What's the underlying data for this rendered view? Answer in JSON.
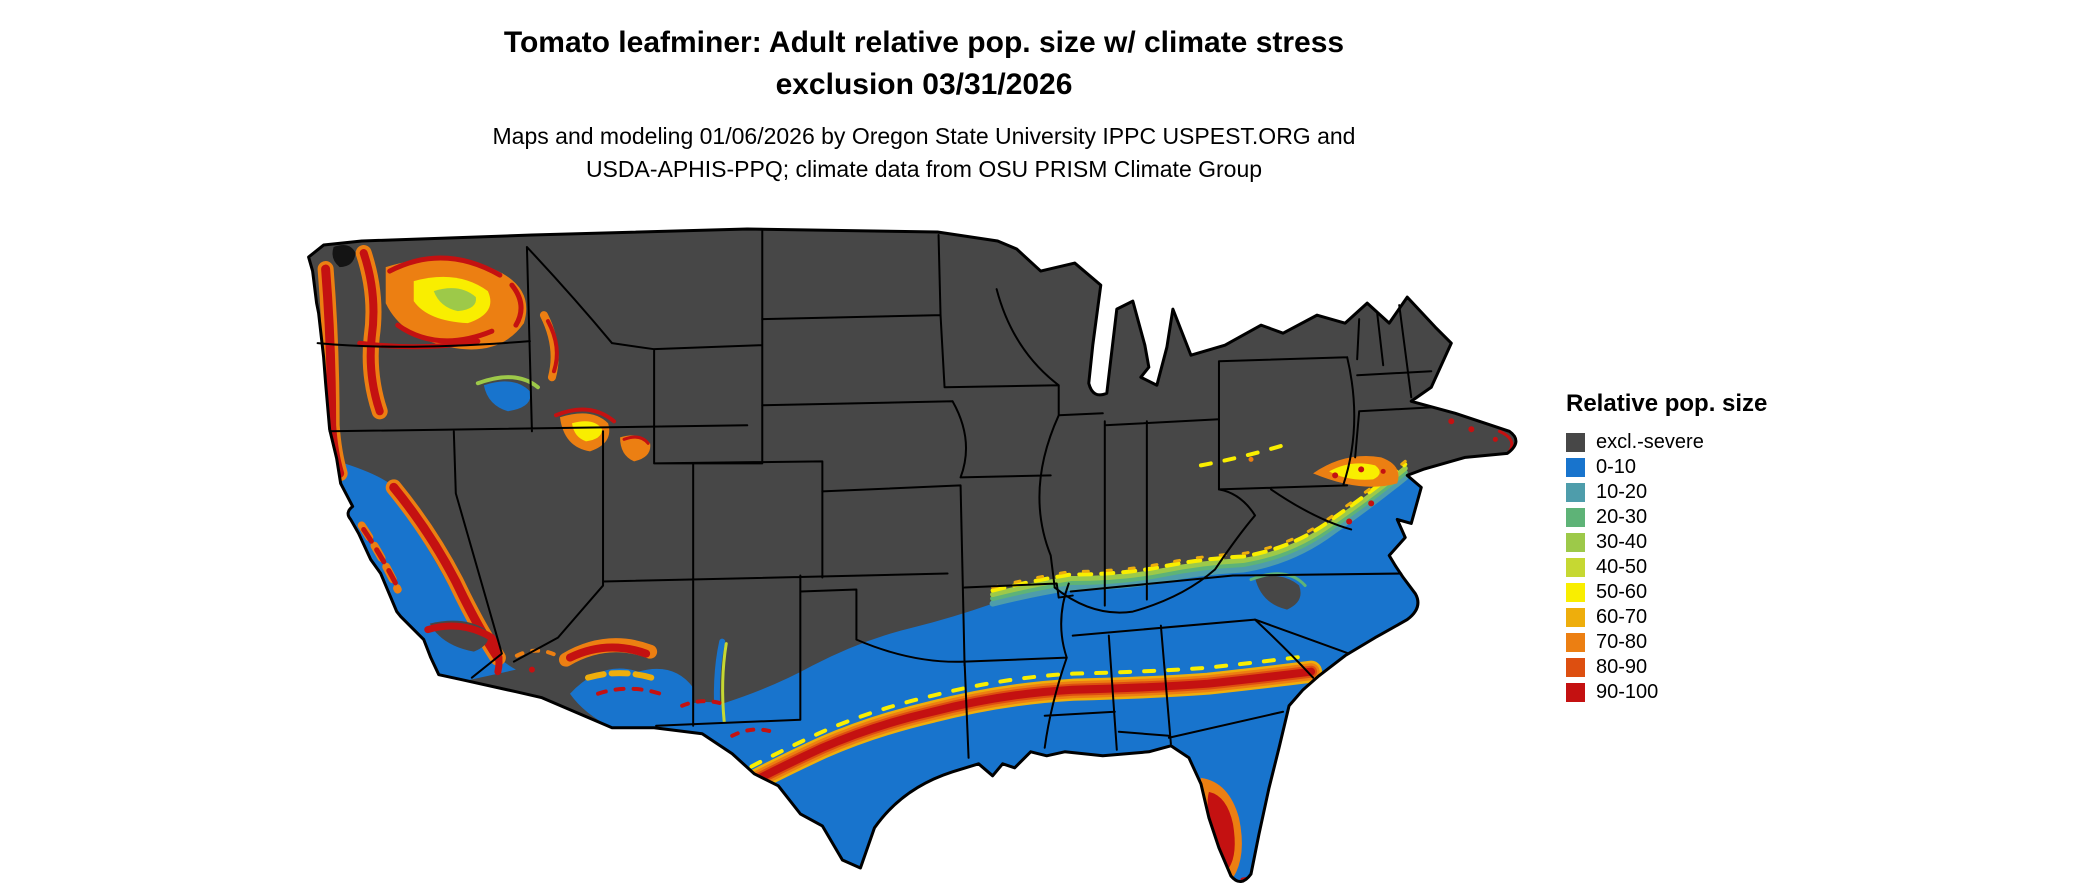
{
  "header": {
    "title_line1": "Tomato leafminer: Adult relative pop. size w/ climate stress",
    "title_line2": "exclusion 03/31/2026",
    "subtitle_line1": "Maps and modeling 01/06/2026 by Oregon State University IPPC USPEST.ORG and",
    "subtitle_line2": "USDA-APHIS-PPQ; climate data from OSU PRISM Climate Group"
  },
  "legend": {
    "title": "Relative pop. size",
    "items": [
      {
        "label": "excl.-severe",
        "color": "#474747"
      },
      {
        "label": "0-10",
        "color": "#1874cd"
      },
      {
        "label": "10-20",
        "color": "#4e9dab"
      },
      {
        "label": "20-30",
        "color": "#5eb377"
      },
      {
        "label": "30-40",
        "color": "#9dc949"
      },
      {
        "label": "40-50",
        "color": "#c6d832"
      },
      {
        "label": "50-60",
        "color": "#f9ee00"
      },
      {
        "label": "60-70",
        "color": "#eeae0c"
      },
      {
        "label": "70-80",
        "color": "#ec7f12"
      },
      {
        "label": "80-90",
        "color": "#dd4f10"
      },
      {
        "label": "90-100",
        "color": "#c41111"
      }
    ]
  },
  "palette": {
    "excl": "#474747",
    "b010": "#1874cd",
    "b1020": "#4e9dab",
    "b2030": "#5eb377",
    "b3040": "#9dc949",
    "b4050": "#c6d832",
    "b5060": "#f9ee00",
    "b6070": "#eeae0c",
    "b7080": "#ec7f12",
    "b8090": "#dd4f10",
    "b90100": "#c41111",
    "nearblack": "#141414",
    "border": "#000000"
  },
  "map": {
    "region_label": "Contiguous United States (CONUS)",
    "style": "raster choropleth with black state borders on white background",
    "pattern_summary": [
      "Northern states, Rockies and high plains: excl.-severe (dark gray)",
      "Southern tier from coastal/central California and low deserts across Texas to the Southeast and Mid-Atlantic coast: 0-10 (blue)",
      "High 60-100 orange-red band along an inland Gulf Coast corridor from west Texas to the Georgia coast",
      "Orange-red mountain and coastal zones in the Pacific Northwest, Sierra Nevada, southern California, Arizona rim and Nevada-Utah ranges",
      "Red hotspot in the central-south Florida peninsula",
      "Yellow-green 10-50 transition fringe along the gray/blue boundary from the Ozarks through Kentucky to Pennsylvania and New Jersey",
      "Scattered red pixels along the southern New England coast"
    ]
  }
}
